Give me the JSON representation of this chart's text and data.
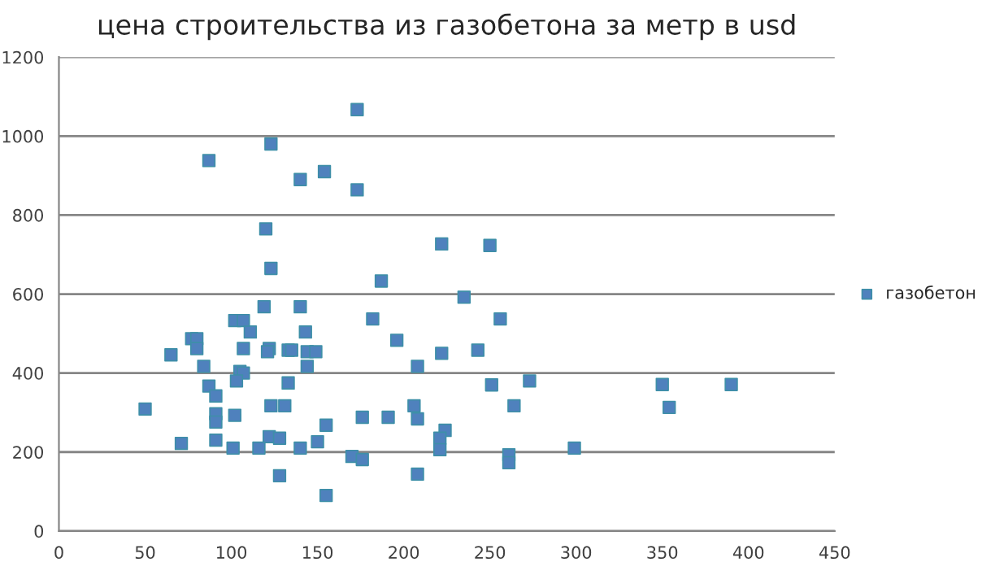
{
  "chart_data": {
    "type": "scatter",
    "title": "цена строительства из газобетона за метр в usd",
    "xlim": [
      0,
      450
    ],
    "xticks": [
      0,
      50,
      100,
      150,
      200,
      250,
      300,
      350,
      400,
      450
    ],
    "ylim": [
      0,
      1200
    ],
    "yticks": [
      0,
      200,
      400,
      600,
      800,
      1000,
      1200
    ],
    "grid": "y",
    "legend": "right",
    "marker": "square",
    "series": [
      {
        "name": "газобетон",
        "color": "#4f81bd",
        "x": [
          123,
          87,
          140,
          154,
          120,
          123,
          119,
          140,
          173,
          173,
          222,
          250,
          187,
          235,
          102,
          107,
          111,
          143,
          77,
          80,
          80,
          107,
          122,
          65,
          121,
          144,
          149,
          133,
          135,
          84,
          144,
          105,
          107,
          103,
          133,
          87,
          91,
          50,
          123,
          131,
          91,
          91,
          102,
          155,
          71,
          91,
          122,
          128,
          101,
          116,
          140,
          150,
          128,
          155,
          182,
          256,
          196,
          208,
          222,
          243,
          251,
          273,
          264,
          206,
          208,
          176,
          191,
          224,
          221,
          221,
          170,
          176,
          261,
          261,
          208,
          299,
          350,
          390,
          354
        ],
        "values": [
          980,
          938,
          890,
          910,
          765,
          665,
          568,
          568,
          1067,
          864,
          727,
          723,
          633,
          592,
          533,
          533,
          504,
          504,
          487,
          487,
          462,
          462,
          462,
          446,
          454,
          454,
          454,
          458,
          458,
          417,
          417,
          404,
          400,
          380,
          375,
          367,
          342,
          309,
          317,
          317,
          297,
          276,
          293,
          268,
          222,
          230,
          239,
          235,
          210,
          210,
          210,
          226,
          140,
          90,
          537,
          537,
          483,
          417,
          450,
          458,
          370,
          380,
          317,
          317,
          284,
          288,
          288,
          255,
          235,
          206,
          189,
          181,
          193,
          173,
          144,
          210,
          371,
          371,
          313
        ]
      }
    ]
  }
}
